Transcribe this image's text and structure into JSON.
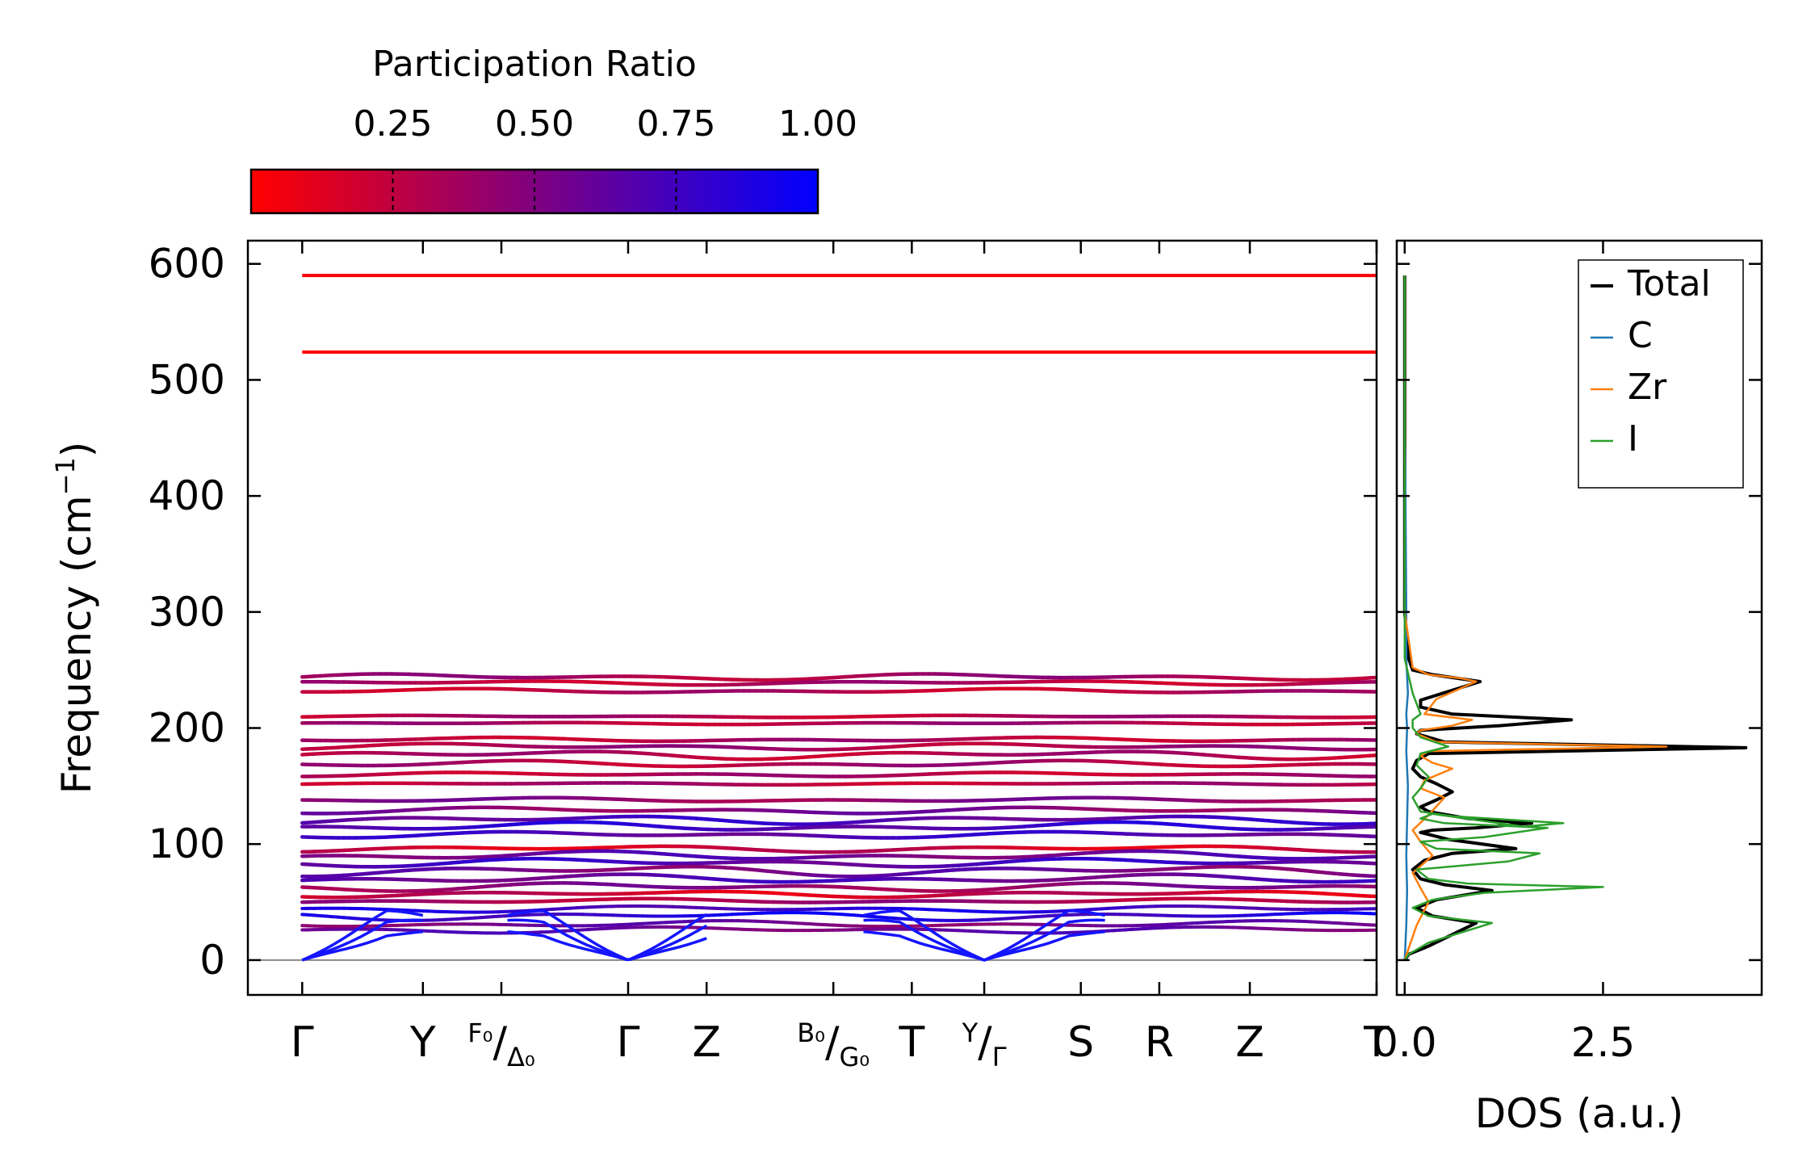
{
  "chart_data": [
    {
      "type": "line",
      "title": "",
      "xlabel": "",
      "ylabel": "Frequency (cm",
      "ylabel_sup": "−1",
      "ylabel_close": ")",
      "ylim": [
        -30,
        620
      ],
      "yticks": [
        0,
        100,
        200,
        300,
        400,
        500,
        600
      ],
      "xlim": [
        -0.45,
        8.9
      ],
      "path_labels": [
        {
          "pos": 0.0,
          "main": "Γ"
        },
        {
          "pos": 1.0,
          "main": "Y"
        },
        {
          "pos": 1.65,
          "main": "",
          "sup": "F₀",
          "slash": "/",
          "sub": "Δ₀"
        },
        {
          "pos": 2.7,
          "main": "Γ"
        },
        {
          "pos": 3.35,
          "main": "Z"
        },
        {
          "pos": 4.4,
          "main": "",
          "sup": "B₀",
          "slash": "/",
          "sub": "G₀"
        },
        {
          "pos": 5.05,
          "main": "T"
        },
        {
          "pos": 5.65,
          "main": "",
          "sup": "Y",
          "slash": "/",
          "sub": "Γ"
        },
        {
          "pos": 6.45,
          "main": "S"
        },
        {
          "pos": 7.1,
          "main": "R"
        },
        {
          "pos": 7.85,
          "main": "Z"
        },
        {
          "pos": 8.9,
          "main": "T"
        }
      ],
      "high_freq_bands": [
        {
          "freq": 590,
          "participation": 0.02
        },
        {
          "freq": 524,
          "participation": 0.02
        }
      ],
      "mid_bands": [
        {
          "freq": 244,
          "participation": 0.35,
          "wiggle": 3
        },
        {
          "freq": 239,
          "participation": 0.3,
          "wiggle": 2
        },
        {
          "freq": 232,
          "participation": 0.28,
          "wiggle": 2
        },
        {
          "freq": 210,
          "participation": 0.3,
          "wiggle": 1
        },
        {
          "freq": 204,
          "participation": 0.32,
          "wiggle": 1
        },
        {
          "freq": 190,
          "participation": 0.3,
          "wiggle": 2
        },
        {
          "freq": 184,
          "participation": 0.35,
          "wiggle": 3
        },
        {
          "freq": 177,
          "participation": 0.3,
          "wiggle": 4
        },
        {
          "freq": 169,
          "participation": 0.32,
          "wiggle": 3
        },
        {
          "freq": 160,
          "participation": 0.3,
          "wiggle": 2
        },
        {
          "freq": 152,
          "participation": 0.3,
          "wiggle": 1
        },
        {
          "freq": 138,
          "participation": 0.45,
          "wiggle": 2
        },
        {
          "freq": 129,
          "participation": 0.5,
          "wiggle": 3
        },
        {
          "freq": 121,
          "participation": 0.7,
          "wiggle": 4
        },
        {
          "freq": 115,
          "participation": 0.75,
          "wiggle": 4
        },
        {
          "freq": 108,
          "participation": 0.7,
          "wiggle": 3
        },
        {
          "freq": 96,
          "participation": 0.2,
          "wiggle": 3
        },
        {
          "freq": 90,
          "participation": 0.6,
          "wiggle": 4
        },
        {
          "freq": 84,
          "participation": 0.7,
          "wiggle": 4
        },
        {
          "freq": 77,
          "participation": 0.55,
          "wiggle": 5
        },
        {
          "freq": 70,
          "participation": 0.65,
          "wiggle": 4
        },
        {
          "freq": 63,
          "participation": 0.45,
          "wiggle": 4
        },
        {
          "freq": 57,
          "participation": 0.2,
          "wiggle": 3
        },
        {
          "freq": 51,
          "participation": 0.35,
          "wiggle": 2
        }
      ],
      "low_bands": [
        {
          "freq": 44,
          "participation": 0.8,
          "wiggle": 3
        },
        {
          "freq": 38,
          "participation": 0.85,
          "wiggle": 4
        },
        {
          "freq": 31,
          "participation": 0.55,
          "wiggle": 3
        },
        {
          "freq": 26,
          "participation": 0.6,
          "wiggle": 3
        }
      ]
    },
    {
      "type": "colorbar",
      "title": "Participation Ratio",
      "range": [
        0.0,
        1.0
      ],
      "tick_values": [
        0.25,
        0.5,
        0.75,
        1.0
      ],
      "tick_labels": [
        "0.25",
        "0.50",
        "0.75",
        "1.00"
      ],
      "colors": {
        "low": "#ff0000",
        "high": "#0000ff"
      }
    },
    {
      "type": "line",
      "xlabel": "DOS (a.u.)",
      "xlim": [
        -0.1,
        4.5
      ],
      "xticks": [
        0.0,
        2.5
      ],
      "xtick_labels": [
        "0.0",
        "2.5"
      ],
      "ylim": [
        -30,
        620
      ],
      "legend_position": "top-right",
      "series": [
        {
          "name": "Total",
          "color": "#000000",
          "x": [
            0,
            0.05,
            0.3,
            0.9,
            0.35,
            0.15,
            0.4,
            1.1,
            0.5,
            0.2,
            0.1,
            0.25,
            0.6,
            1.4,
            0.55,
            0.2,
            0.35,
            0.9,
            1.6,
            0.8,
            0.3,
            0.2,
            0.4,
            0.6,
            0.4,
            0.2,
            0.1,
            0.15,
            0.3,
            4.3,
            0.5,
            0.15,
            0.2,
            1.2,
            2.1,
            0.6,
            0.2,
            0.2,
            0.95,
            0.35,
            0.1,
            0.05,
            0,
            0,
            0,
            0,
            0,
            0,
            0
          ],
          "y": [
            0,
            5,
            12,
            32,
            38,
            45,
            52,
            60,
            65,
            70,
            78,
            86,
            92,
            96,
            104,
            110,
            112,
            114,
            118,
            122,
            128,
            132,
            138,
            145,
            152,
            158,
            165,
            172,
            178,
            183,
            188,
            195,
            198,
            202,
            207,
            212,
            218,
            224,
            240,
            246,
            250,
            260,
            300,
            400,
            450,
            500,
            524,
            560,
            590
          ]
        },
        {
          "name": "C",
          "color": "#1f77b4",
          "x": [
            0,
            0.02,
            0.03,
            0.02,
            0.03,
            0.04,
            0.02,
            0.03,
            0.02,
            0.04,
            0.03,
            0.02,
            0.02,
            0.01,
            0,
            0,
            0,
            0,
            0
          ],
          "y": [
            0,
            30,
            60,
            90,
            120,
            150,
            180,
            200,
            212,
            230,
            245,
            260,
            300,
            400,
            450,
            500,
            524,
            560,
            590
          ]
        },
        {
          "name": "Zr",
          "color": "#ff7f0e",
          "x": [
            0,
            0.05,
            0.15,
            0.3,
            0.2,
            0.1,
            0.35,
            0.2,
            0.1,
            0.3,
            0.5,
            0.2,
            0.25,
            0.6,
            0.35,
            0.2,
            0.3,
            3.3,
            0.4,
            0.15,
            0.2,
            0.6,
            0.85,
            0.25,
            0.4,
            0.9,
            0.7,
            0.3,
            0.1,
            0,
            0,
            0,
            0,
            0,
            0
          ],
          "y": [
            0,
            10,
            30,
            50,
            62,
            75,
            90,
            102,
            112,
            125,
            140,
            148,
            155,
            165,
            170,
            176,
            180,
            184,
            188,
            195,
            198,
            202,
            207,
            212,
            225,
            240,
            243,
            246,
            252,
            300,
            400,
            450,
            500,
            524,
            590
          ]
        },
        {
          "name": "I",
          "color": "#2ca02c",
          "x": [
            0,
            0.05,
            0.3,
            1.1,
            0.3,
            0.1,
            0.35,
            1.0,
            2.5,
            0.8,
            0.3,
            0.15,
            1.3,
            1.7,
            0.4,
            0.2,
            1.0,
            1.8,
            0.5,
            0.2,
            0.35,
            1.5,
            2.0,
            0.6,
            0.2,
            0.1,
            0.2,
            0.3,
            0.15,
            0.2,
            0.55,
            0.2,
            0.1,
            0.1,
            0.2,
            0.1,
            0.05,
            0,
            0,
            0,
            0,
            0,
            0
          ],
          "y": [
            0,
            5,
            15,
            32,
            38,
            45,
            52,
            58,
            63,
            66,
            70,
            78,
            85,
            92,
            96,
            102,
            106,
            114,
            118,
            122,
            126,
            115,
            118,
            124,
            128,
            140,
            148,
            158,
            168,
            178,
            184,
            192,
            200,
            207,
            212,
            230,
            245,
            260,
            300,
            400,
            500,
            524,
            590
          ]
        }
      ]
    }
  ]
}
